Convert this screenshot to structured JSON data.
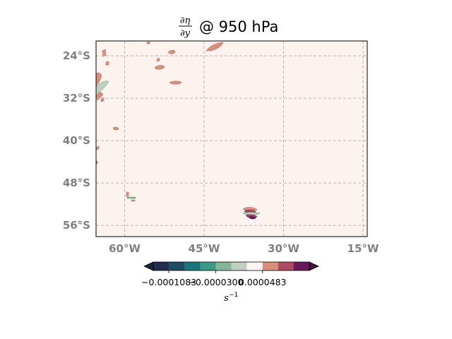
{
  "figure": {
    "title_fraction_numerator": "∂η",
    "title_fraction_denominator": "∂y",
    "title_suffix": "@ 950 hPa"
  },
  "map": {
    "lon_ticks": [
      {
        "value": -60,
        "label": "60°W"
      },
      {
        "value": -45,
        "label": "45°W"
      },
      {
        "value": -30,
        "label": "30°W"
      },
      {
        "value": -15,
        "label": "15°W"
      }
    ],
    "lat_ticks": [
      {
        "value": -24,
        "label": "24°S"
      },
      {
        "value": -32,
        "label": "32°S"
      },
      {
        "value": -40,
        "label": "40°S"
      },
      {
        "value": -48,
        "label": "48°S"
      },
      {
        "value": -56,
        "label": "56°S"
      }
    ],
    "background_color": "#fcf2ee",
    "gridline_color": "#b9b1b1",
    "feature_colors": {
      "positive_light": "#d9907a",
      "positive_dark": "#b04a5e",
      "positive_max": "#6a1a5a",
      "negative_light": "#bfcfbd",
      "negative_mid": "#85b596"
    }
  },
  "colorbar": {
    "tick_labels": [
      "−0.0001083",
      "−0.0000300",
      "0.0000483"
    ],
    "unit_base": "s",
    "unit_exponent": "−1",
    "colors": [
      "#222c4c",
      "#1f4b64",
      "#18777a",
      "#3c9a88",
      "#85b596",
      "#bfcfbd",
      "#fdf6f2",
      "#d9907a",
      "#b04a5e",
      "#6a1a5a"
    ],
    "under_color": "#1b2340",
    "over_color": "#4a1040"
  }
}
